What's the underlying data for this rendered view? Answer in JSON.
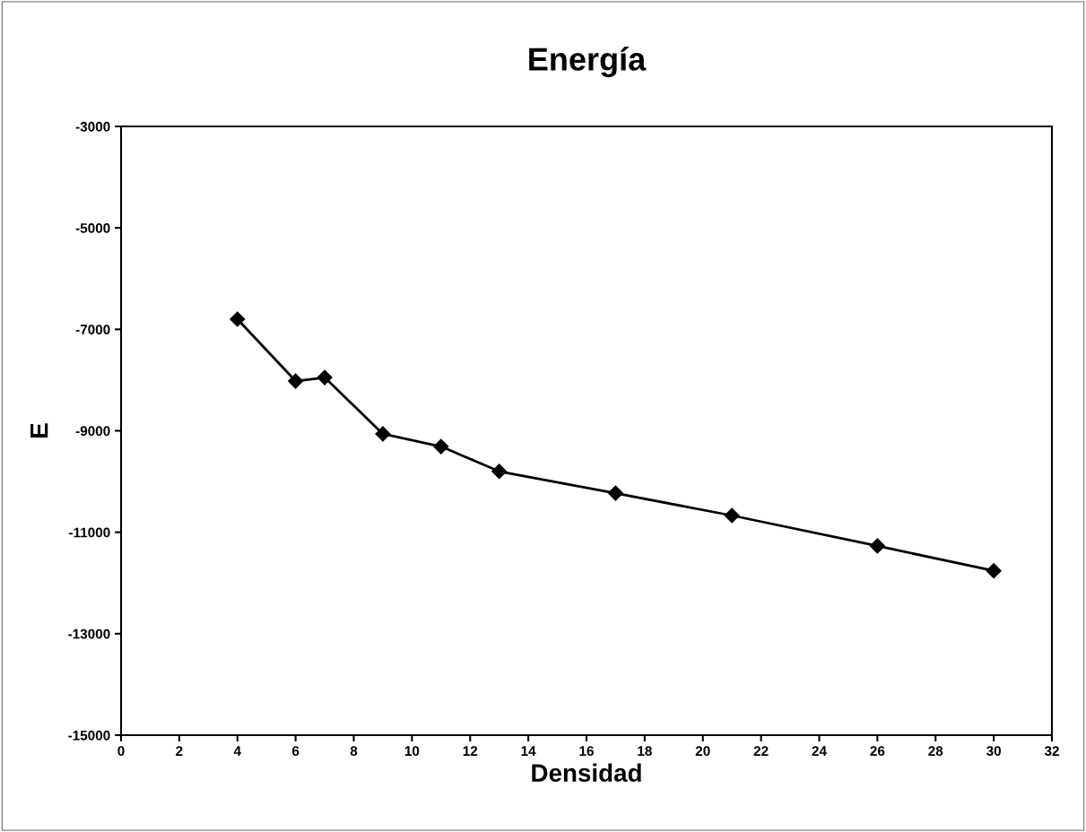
{
  "chart_data": {
    "type": "line",
    "title": "Energía",
    "xlabel": "Densidad",
    "ylabel": "E",
    "x": [
      4,
      6,
      7,
      9,
      11,
      13,
      17,
      21,
      26,
      30
    ],
    "series": [
      {
        "color": "#000000",
        "values": [
          -6800,
          -8020,
          -7950,
          -9060,
          -9310,
          -9800,
          -10230,
          -10670,
          -11270,
          -11760
        ]
      }
    ],
    "xlim": [
      0,
      32
    ],
    "xticks": [
      0,
      2,
      4,
      6,
      8,
      10,
      12,
      14,
      16,
      18,
      20,
      22,
      24,
      26,
      28,
      30,
      32
    ],
    "ylim": [
      -15000,
      -3000
    ],
    "yticks": [
      -15000,
      -13000,
      -11000,
      -9000,
      -7000,
      -5000,
      -3000
    ],
    "grid": false,
    "legend": false,
    "marker": "diamond",
    "line_style": "solid"
  }
}
